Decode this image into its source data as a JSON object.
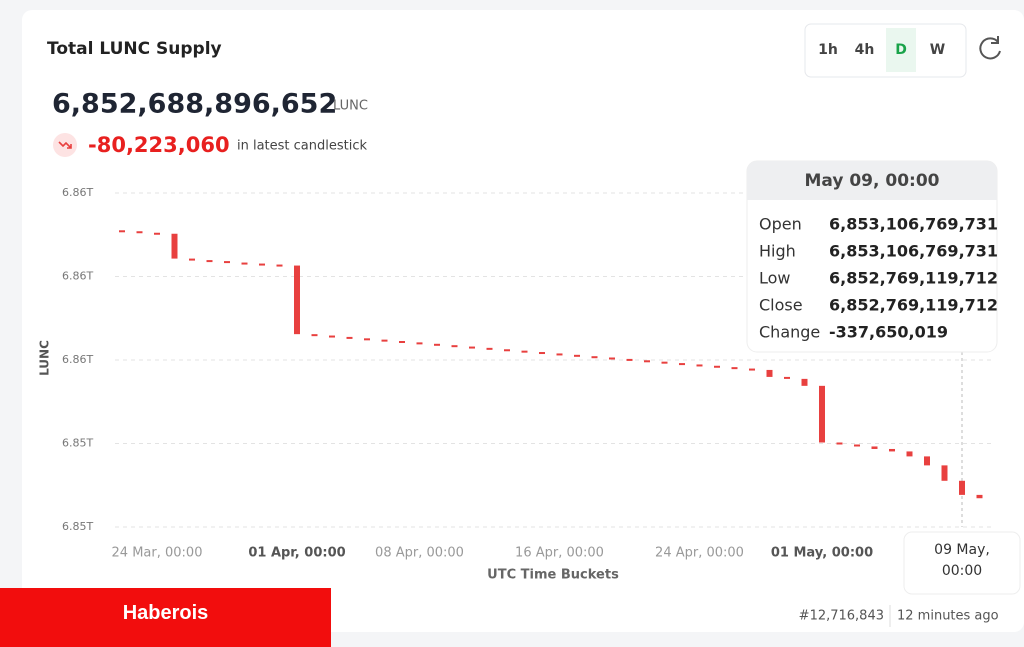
{
  "header": {
    "title": "Total LUNC Supply",
    "supply": "6,852,688,896,652",
    "unit": "LUNC",
    "change": "-80,223,060",
    "change_note": "in latest candlestick",
    "intervals": [
      "1h",
      "4h",
      "D",
      "W"
    ],
    "active_interval": 2
  },
  "chart_data": {
    "type": "candlestick",
    "color": "#e8403f",
    "ylabel": "LUNC",
    "xlabel": "UTC Time Buckets",
    "categories": [
      null,
      null,
      "24 Mar, 00:00",
      null,
      null,
      null,
      null,
      null,
      null,
      null,
      "01 Apr, 00:00",
      null,
      null,
      null,
      null,
      null,
      null,
      "08 Apr, 00:00",
      null,
      null,
      null,
      null,
      null,
      null,
      null,
      "16 Apr, 00:00",
      null,
      null,
      null,
      null,
      null,
      null,
      null,
      "24 Apr, 00:00",
      null,
      null,
      null,
      null,
      null,
      null,
      "01 May, 00:00",
      null,
      null,
      null,
      null,
      null,
      null,
      null,
      "09 May, 00:00",
      null
    ],
    "open": [
      6859107000000,
      6859084000000,
      6859048000000,
      6859024000000,
      6858429000000,
      6858393000000,
      6858369000000,
      6858334000000,
      6858310000000,
      6858286000000,
      6858262000000,
      6856619000000,
      6856586000000,
      6856553000000,
      6856519000000,
      6856488000000,
      6856455000000,
      6856422000000,
      6856388000000,
      6856355000000,
      6856322000000,
      6856291000000,
      6856257000000,
      6856224000000,
      6856191000000,
      6856157000000,
      6856124000000,
      6856091000000,
      6856060000000,
      6856026000000,
      6855993000000,
      6855960000000,
      6855926000000,
      6855893000000,
      6855862000000,
      6855829000000,
      6855795000000,
      6855762000000,
      6855595000000,
      6855548000000,
      6855381000000,
      6854024000000,
      6853976000000,
      6853929000000,
      6853869000000,
      6853810000000,
      6853691000000,
      6853476000000,
      6853106769731,
      6852769119712
    ],
    "close": [
      6859084000000,
      6859048000000,
      6859024000000,
      6858429000000,
      6858393000000,
      6858369000000,
      6858334000000,
      6858310000000,
      6858286000000,
      6858262000000,
      6856619000000,
      6856586000000,
      6856553000000,
      6856519000000,
      6856488000000,
      6856455000000,
      6856422000000,
      6856388000000,
      6856355000000,
      6856322000000,
      6856291000000,
      6856257000000,
      6856224000000,
      6856191000000,
      6856157000000,
      6856124000000,
      6856091000000,
      6856060000000,
      6856026000000,
      6855993000000,
      6855960000000,
      6855926000000,
      6855893000000,
      6855862000000,
      6855829000000,
      6855795000000,
      6855762000000,
      6855595000000,
      6855548000000,
      6855381000000,
      6854024000000,
      6853976000000,
      6853929000000,
      6853869000000,
      6853810000000,
      6853691000000,
      6853476000000,
      6853106769731,
      6852769119712,
      6852688896652
    ],
    "ylim": [
      6852000000000,
      6860000000000
    ],
    "yticks": [
      {
        "value": 6852000000000,
        "label": "6.85T"
      },
      {
        "value": 6854000000000,
        "label": "6.85T"
      },
      {
        "value": 6856000000000,
        "label": "6.86T"
      },
      {
        "value": 6858000000000,
        "label": "6.86T"
      },
      {
        "value": 6860000000000,
        "label": "6.86T"
      }
    ],
    "grid": true,
    "highlight": 48,
    "tooltip": {
      "title": "May 09, 00:00",
      "rows": [
        [
          "Open",
          "6,853,106,769,731"
        ],
        [
          "High",
          "6,853,106,769,731"
        ],
        [
          "Low",
          "6,852,769,119,712"
        ],
        [
          "Close",
          "6,852,769,119,712"
        ],
        [
          "Change",
          "-337,650,019"
        ]
      ]
    }
  },
  "footer": {
    "block": "#12,716,843",
    "age": "12 minutes ago"
  },
  "banner": "Haberois"
}
